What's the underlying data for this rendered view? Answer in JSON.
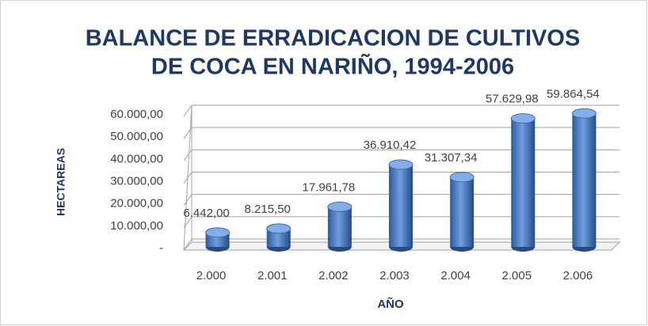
{
  "chart_data": {
    "type": "bar",
    "title": [
      "BALANCE DE ERRADICACION DE CULTIVOS",
      "DE COCA EN NARIÑO, 1994-2006"
    ],
    "x_label": "AÑO",
    "y_label": "HECTAREAS",
    "categories": [
      "2.000",
      "2.001",
      "2.002",
      "2.003",
      "2.004",
      "2.005",
      "2.006"
    ],
    "values": [
      6442.0,
      8215.5,
      17961.78,
      36910.42,
      31307.34,
      57629.98,
      59864.54
    ],
    "value_labels": [
      "6.442,00",
      "8.215,50",
      "17.961,78",
      "36.910,42",
      "31.307,34",
      "57.629,98",
      "59.864,54"
    ],
    "color": "#4a7cc0",
    "ylim": [
      0,
      60000
    ],
    "yticks": [
      {
        "value": 0,
        "label": "-"
      },
      {
        "value": 10000,
        "label": "10.000,00"
      },
      {
        "value": 20000,
        "label": "20.000,00"
      },
      {
        "value": 30000,
        "label": "30.000,00"
      },
      {
        "value": 40000,
        "label": "40.000,00"
      },
      {
        "value": 50000,
        "label": "50.000,00"
      },
      {
        "value": 60000,
        "label": "60.000,00"
      }
    ],
    "grid": true
  }
}
